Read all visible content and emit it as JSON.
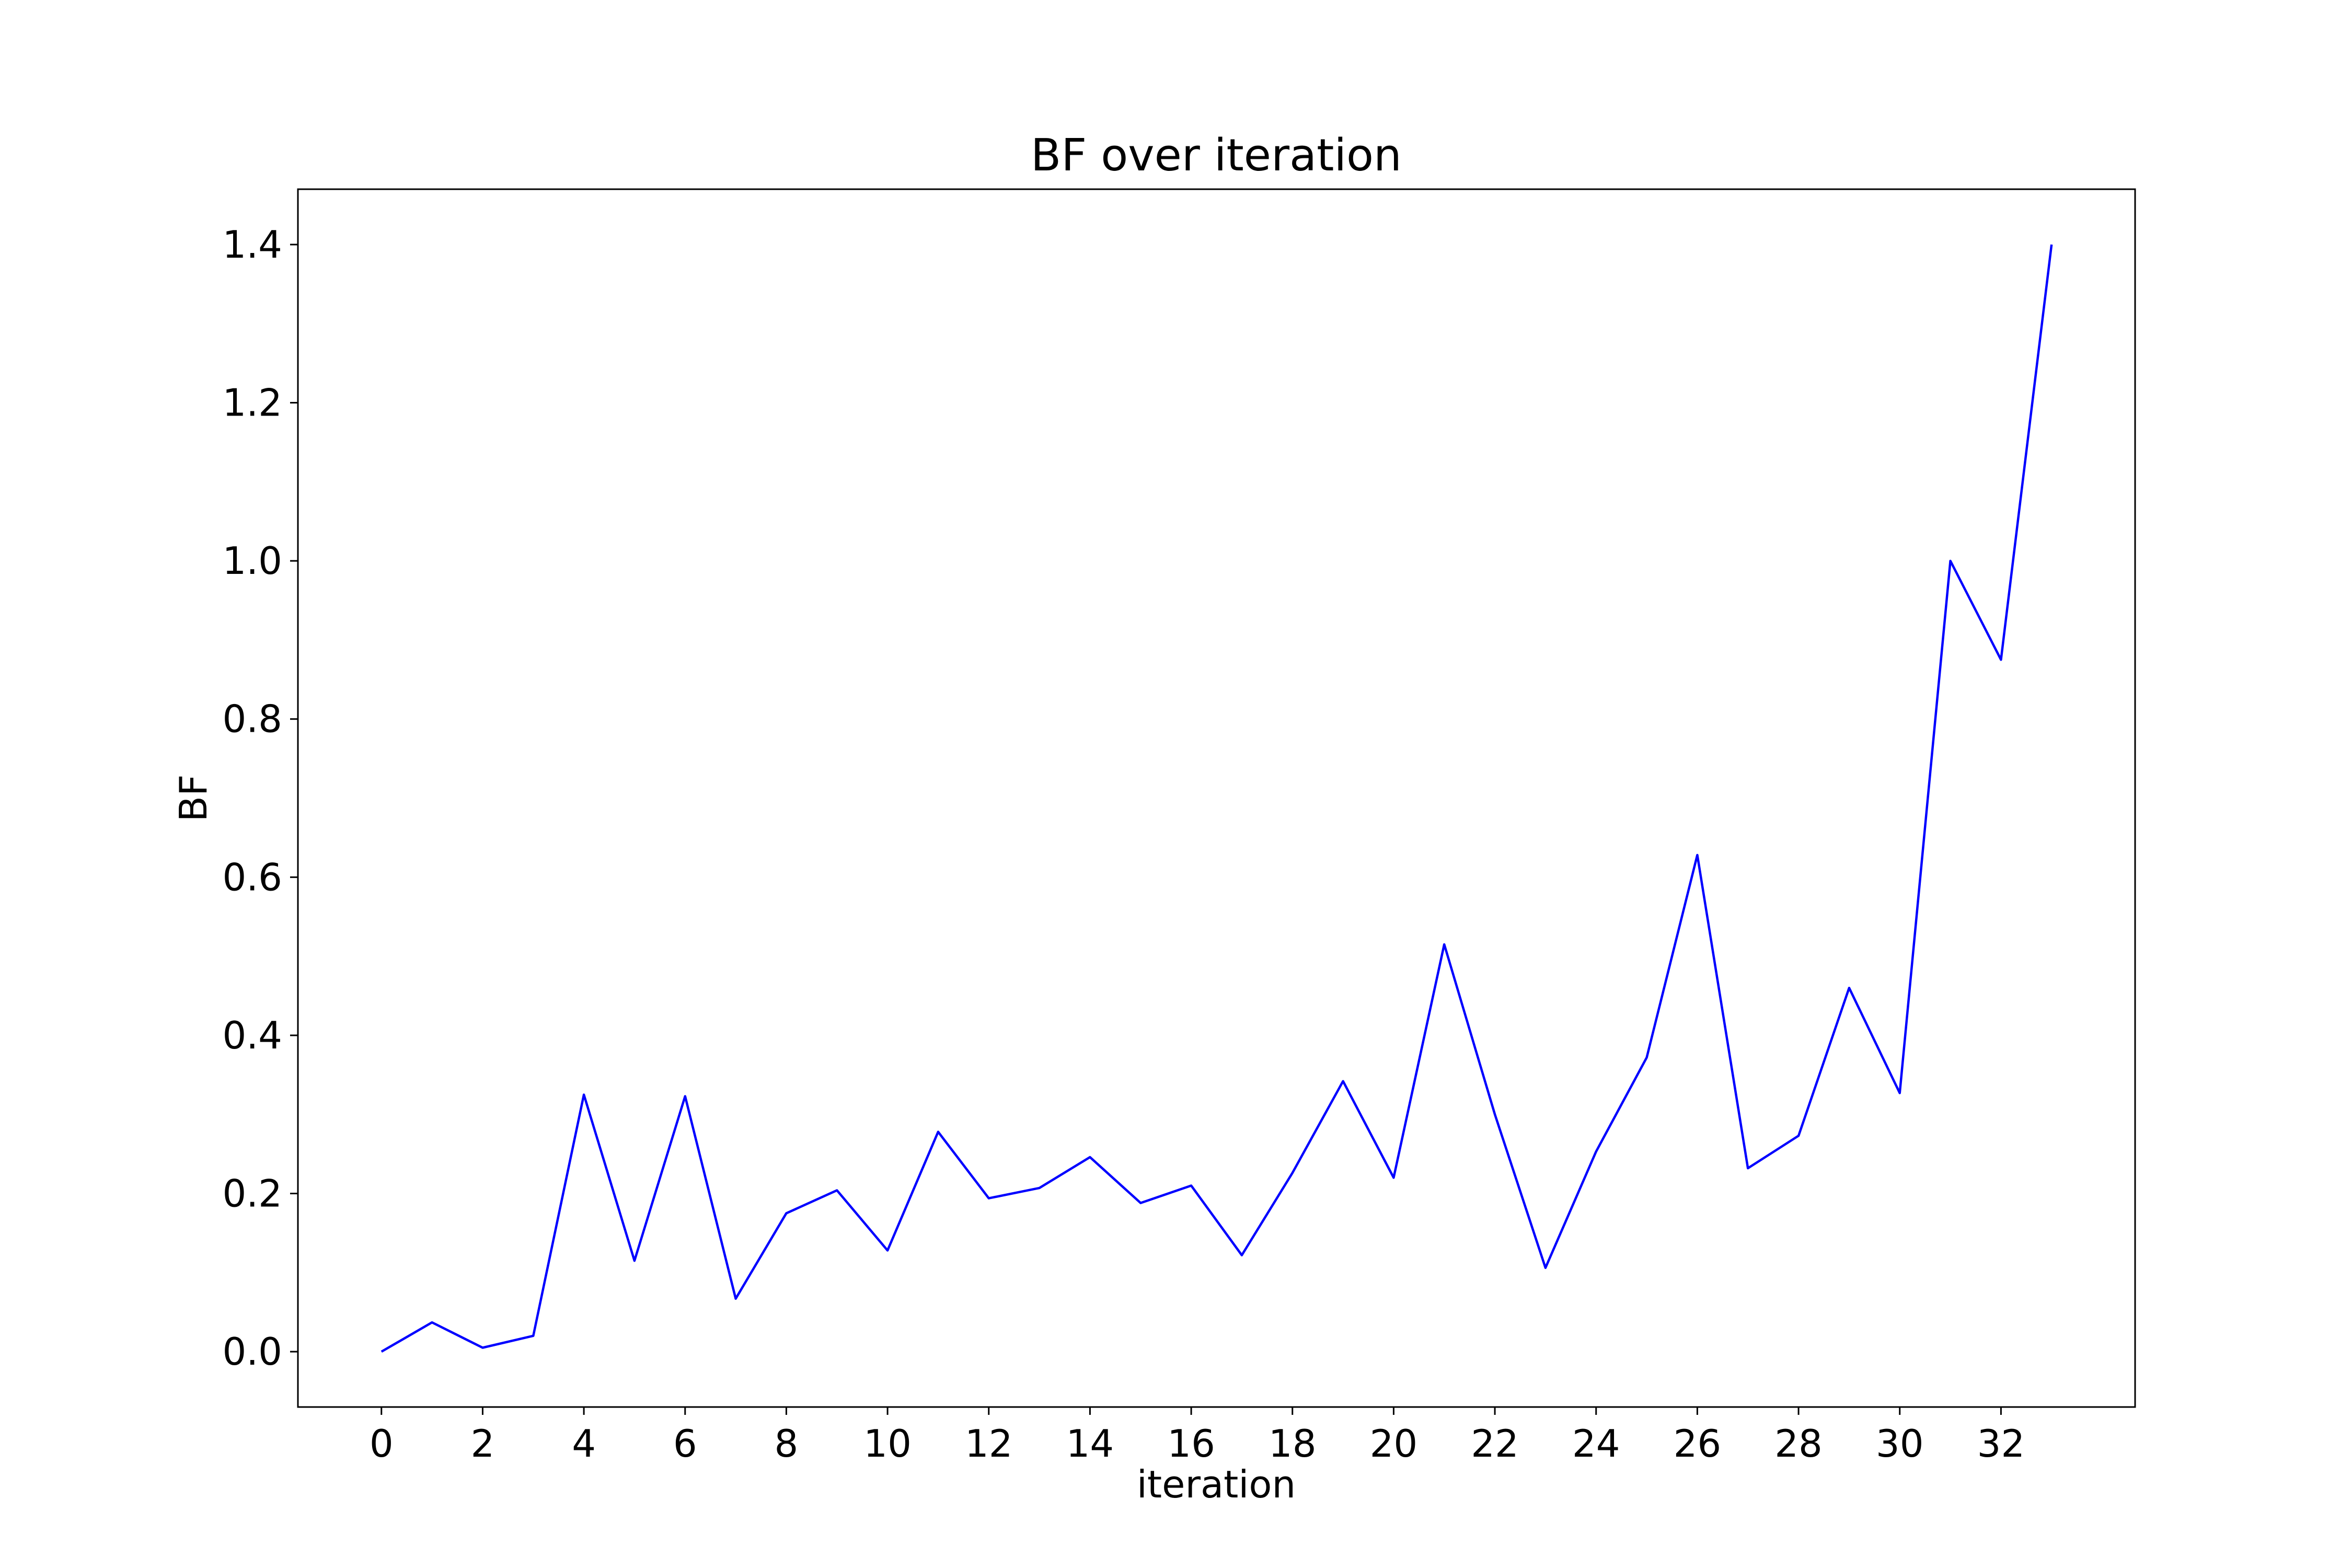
{
  "chart_data": {
    "type": "line",
    "title": "BF over iteration",
    "xlabel": "iteration",
    "ylabel": "BF",
    "xlim": [
      -1.65,
      34.65
    ],
    "ylim": [
      -0.07,
      1.47
    ],
    "xticks": [
      0,
      2,
      4,
      6,
      8,
      10,
      12,
      14,
      16,
      18,
      20,
      22,
      24,
      26,
      28,
      30,
      32
    ],
    "yticks": [
      0.0,
      0.2,
      0.4,
      0.6,
      0.8,
      1.0,
      1.2,
      1.4
    ],
    "ytick_labels": [
      "0.0",
      "0.2",
      "0.4",
      "0.6",
      "0.8",
      "1.0",
      "1.2",
      "1.4"
    ],
    "grid": false,
    "series": [
      {
        "color": "#0000ff",
        "x": [
          0,
          1,
          2,
          3,
          4,
          5,
          6,
          7,
          8,
          9,
          10,
          11,
          12,
          13,
          14,
          15,
          16,
          17,
          18,
          19,
          20,
          21,
          22,
          23,
          24,
          25,
          26,
          27,
          28,
          29,
          30,
          31,
          32,
          33
        ],
        "values": [
          0.0,
          0.037,
          0.005,
          0.02,
          0.325,
          0.115,
          0.323,
          0.067,
          0.175,
          0.204,
          0.128,
          0.278,
          0.194,
          0.207,
          0.246,
          0.188,
          0.21,
          0.122,
          0.226,
          0.342,
          0.22,
          0.515,
          0.3,
          0.106,
          0.253,
          0.372,
          0.628,
          0.232,
          0.273,
          0.46,
          0.327,
          1.0,
          0.875,
          1.4
        ]
      }
    ]
  }
}
